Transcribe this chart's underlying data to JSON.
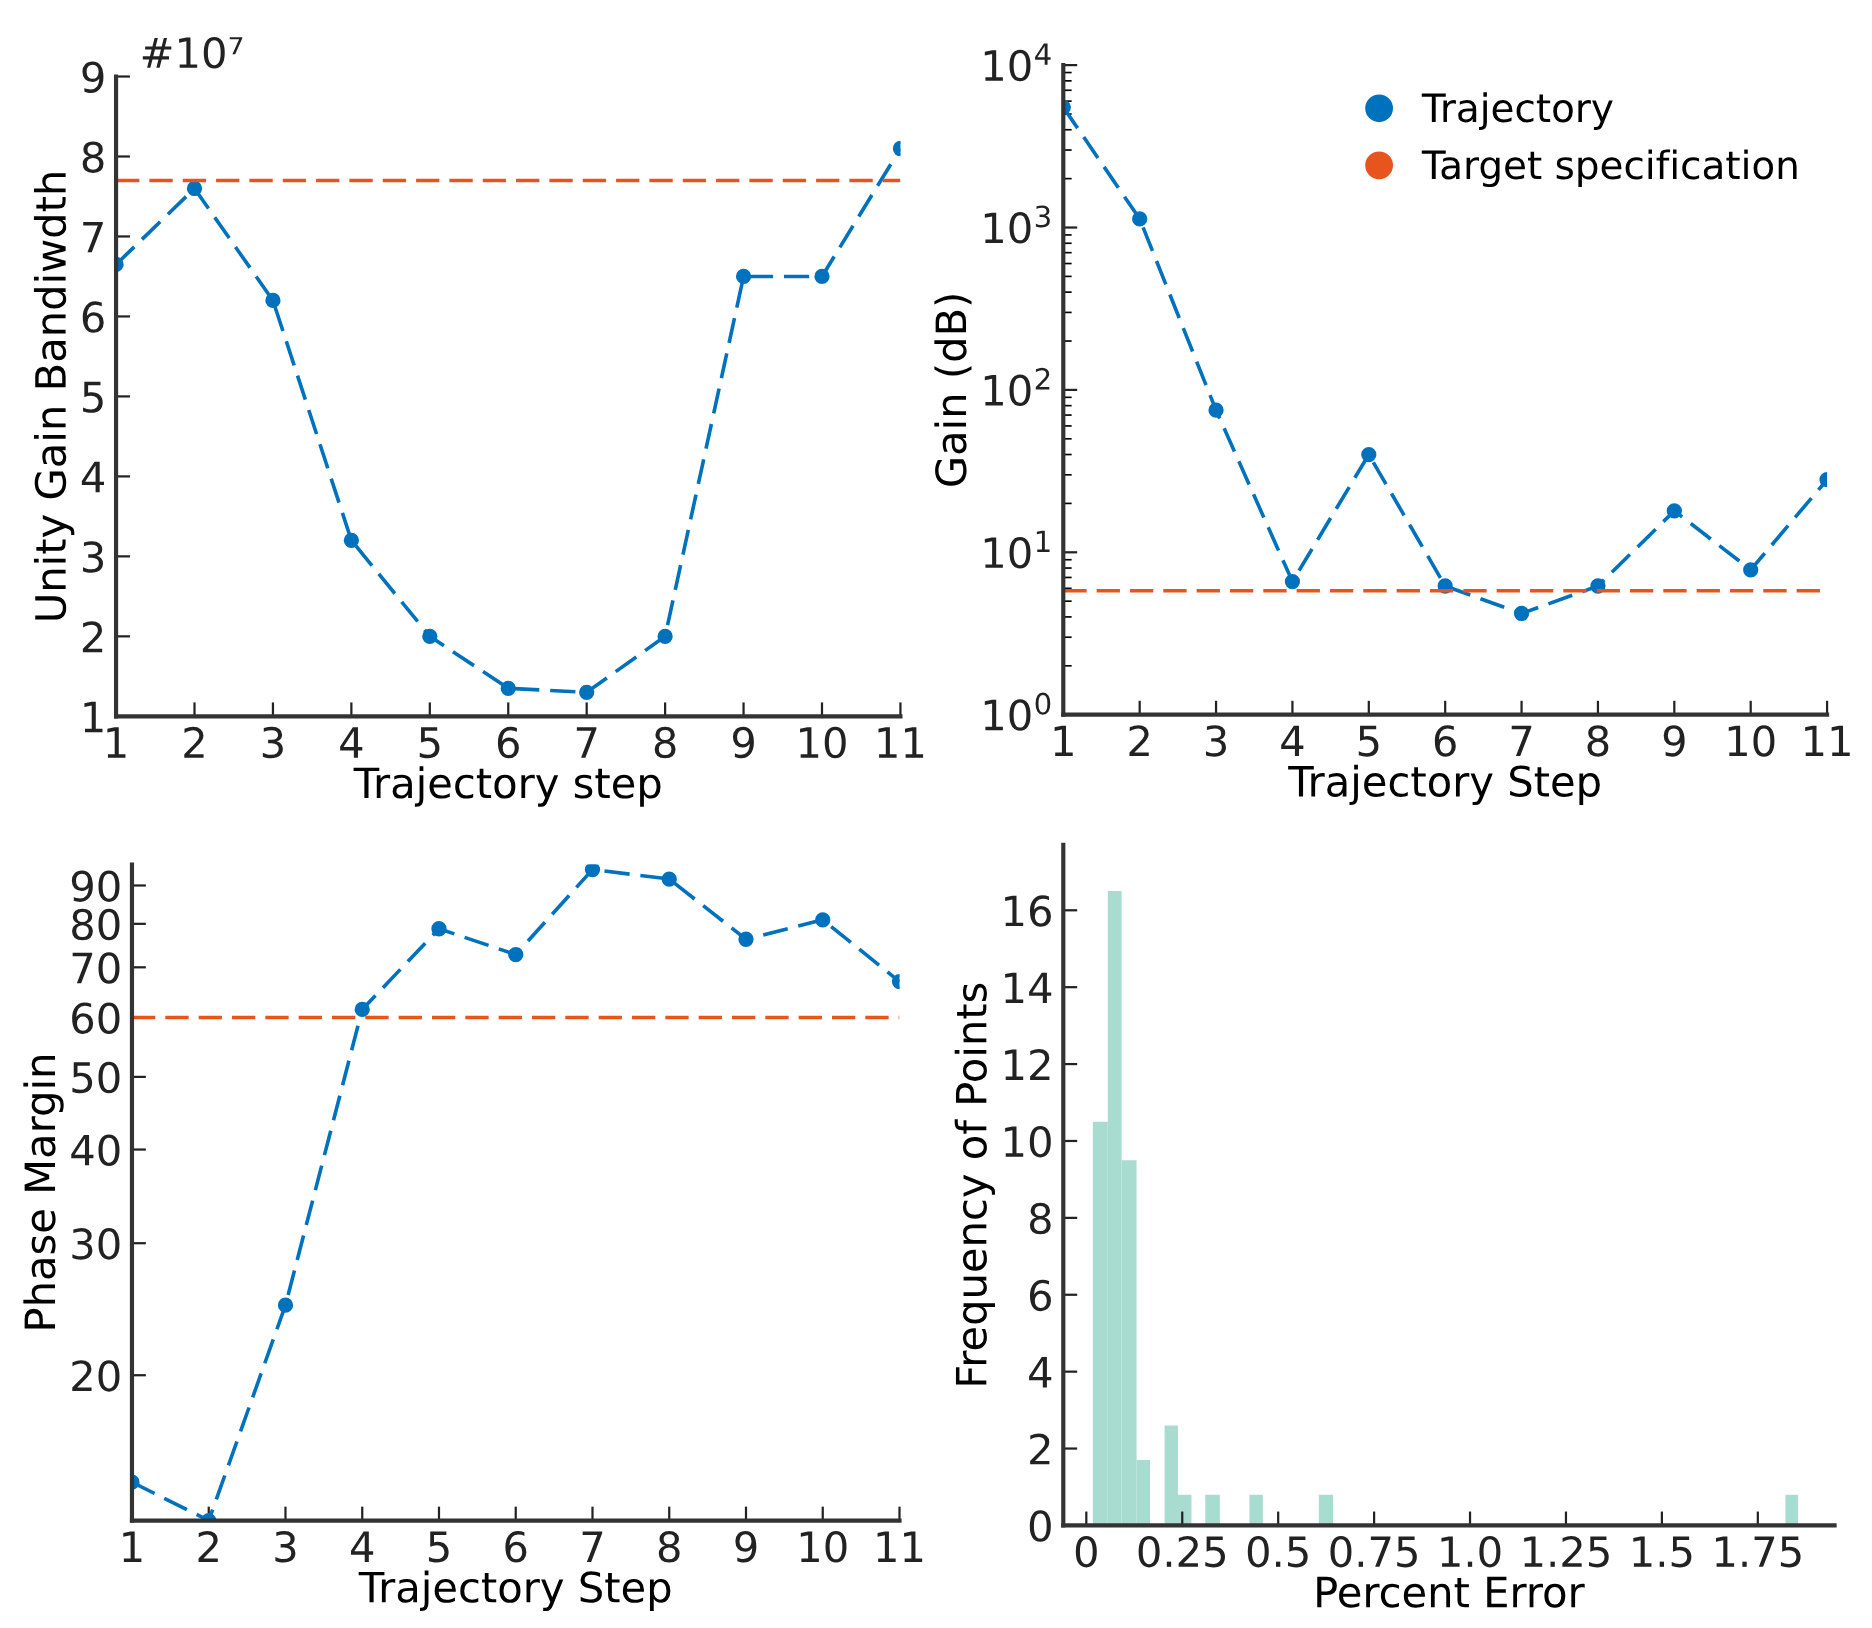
{
  "chart_data": [
    {
      "type": "line",
      "ylabel": "Unity Gain Bandiwdth",
      "xlabel": "Trajectory step",
      "annotations": [
        "#10⁷"
      ],
      "x": [
        1,
        2,
        3,
        4,
        5,
        6,
        7,
        8,
        9,
        10,
        11
      ],
      "xlim": [
        1,
        11
      ],
      "xticks": [
        1,
        2,
        3,
        4,
        5,
        6,
        7,
        8,
        9,
        10,
        11
      ],
      "ylim": [
        1,
        9
      ],
      "yticks": [
        1,
        2,
        3,
        4,
        5,
        6,
        7,
        8,
        9
      ],
      "marker": "circle",
      "line_style": "dashed",
      "grid": false,
      "legend": false,
      "series": [
        {
          "color": "#0072bd",
          "values": [
            6.65,
            7.6,
            6.2,
            3.2,
            2.0,
            1.35,
            1.3,
            2.0,
            6.5,
            6.5,
            8.1
          ]
        }
      ],
      "ref_lines": [
        {
          "axis": "y",
          "value": 7.7,
          "color": "#e8541e",
          "line_style": "dashed"
        }
      ]
    },
    {
      "type": "line",
      "ylabel": "Gain (dB)",
      "xlabel": "Trajectory Step",
      "log": "y",
      "x": [
        1,
        2,
        3,
        4,
        5,
        6,
        7,
        8,
        9,
        10,
        11
      ],
      "xlim": [
        1,
        11
      ],
      "xticks": [
        1,
        2,
        3,
        4,
        5,
        6,
        7,
        8,
        9,
        10,
        11
      ],
      "ylim": [
        1,
        10000
      ],
      "yticks": [
        {
          "value": 1,
          "label": "10$^{0}$"
        },
        {
          "value": 10,
          "label": "10$^{1}$"
        },
        {
          "value": 100,
          "label": "10$^{2}$"
        },
        {
          "value": 1000,
          "label": "10$^{3}$"
        },
        {
          "value": 10000,
          "label": "10$^{4}$"
        }
      ],
      "marker": "circle",
      "line_style": "dashed",
      "grid": false,
      "legend": "top right",
      "series": [
        {
          "name": "Trajectory",
          "color": "#0072bd",
          "values": [
            5500,
            1130,
            75,
            6.6,
            40,
            6.2,
            4.2,
            6.2,
            18,
            7.8,
            28
          ]
        }
      ],
      "ref_lines": [
        {
          "axis": "y",
          "value": 5.8,
          "label": "Target specification",
          "color": "#e8541e",
          "line_style": "dashed"
        }
      ]
    },
    {
      "type": "line",
      "ylabel": "Phase Margin",
      "xlabel": "Trajectory Step",
      "log": "y",
      "x": [
        1,
        2,
        3,
        4,
        5,
        6,
        7,
        8,
        9,
        10,
        11
      ],
      "xlim": [
        1,
        11
      ],
      "xticks": [
        1,
        2,
        3,
        4,
        5,
        6,
        7,
        8,
        9,
        10,
        11
      ],
      "ylim": [
        12.8,
        96
      ],
      "yticks": [
        20,
        30,
        40,
        50,
        60,
        70,
        80,
        90
      ],
      "marker": "circle",
      "line_style": "dashed",
      "grid": false,
      "legend": false,
      "series": [
        {
          "color": "#0072bd",
          "values": [
            14.4,
            12.8,
            24.8,
            61.5,
            78.8,
            72.8,
            94.5,
            91.8,
            76.3,
            81,
            67
          ]
        }
      ],
      "ref_lines": [
        {
          "axis": "y",
          "value": 60,
          "color": "#e8541e",
          "line_style": "dashed"
        }
      ]
    },
    {
      "type": "histogram",
      "ylabel": "Frequency of Points",
      "xlabel": "Percent Error",
      "color": "#a8dcd1",
      "bins": [
        0.017,
        0.056,
        0.092,
        0.131,
        0.166,
        0.204,
        0.239,
        0.274,
        0.31,
        0.348,
        0.425,
        0.46,
        0.606,
        0.643,
        1.822,
        1.855
      ],
      "values": [
        10.5,
        16.5,
        9.5,
        1.7,
        0,
        2.6,
        0.8,
        0,
        0.8,
        0,
        0.8,
        0,
        0.8,
        0,
        0.8
      ],
      "xlim": [
        -0.06,
        1.95
      ],
      "xticks": [
        0,
        0.25,
        0.5,
        0.75,
        {
          "value": 1,
          "label": "1.0"
        },
        1.25,
        1.5,
        1.75
      ],
      "ylim": [
        0,
        17.7
      ],
      "yticks": [
        0,
        2,
        4,
        6,
        8,
        10,
        12,
        14,
        16
      ],
      "grid": false,
      "legend": false
    }
  ]
}
